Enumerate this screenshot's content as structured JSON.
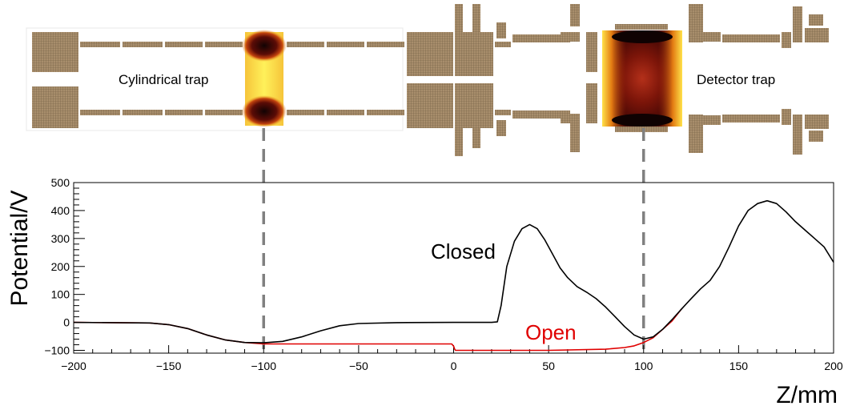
{
  "diagram": {
    "cylindrical_trap_label": "Cylindrical trap",
    "detector_trap_label": "Detector trap"
  },
  "chart_data": {
    "type": "line",
    "xlabel": "Z/mm",
    "ylabel": "Potential/V",
    "xlim": [
      -200,
      200
    ],
    "ylim": [
      -110,
      500
    ],
    "xticks": [
      -200,
      -150,
      -100,
      -50,
      0,
      50,
      100,
      150,
      200
    ],
    "yticks": [
      -100,
      0,
      100,
      200,
      300,
      400,
      500
    ],
    "xtick_labels": [
      "−200",
      "−150",
      "−100",
      "−50",
      "0",
      "50",
      "100",
      "150",
      "200"
    ],
    "ytick_labels": [
      "−100",
      "0",
      "100",
      "200",
      "300",
      "400",
      "500"
    ],
    "vlines": [
      -100,
      100
    ],
    "grid": false,
    "series": [
      {
        "name": "Closed",
        "color": "#000000",
        "x": [
          -200,
          -160,
          -150,
          -140,
          -130,
          -120,
          -110,
          -100,
          -90,
          -80,
          -70,
          -60,
          -50,
          -30,
          0,
          20,
          23,
          25,
          28,
          32,
          36,
          40,
          44,
          48,
          52,
          56,
          60,
          65,
          70,
          75,
          80,
          85,
          90,
          95,
          100,
          105,
          110,
          115,
          120,
          125,
          130,
          135,
          140,
          145,
          150,
          155,
          160,
          165,
          170,
          175,
          180,
          185,
          190,
          195,
          200
        ],
        "y": [
          0,
          -2,
          -8,
          -22,
          -45,
          -63,
          -72,
          -73,
          -68,
          -52,
          -30,
          -12,
          -4,
          -1,
          0,
          0,
          2,
          60,
          200,
          290,
          335,
          350,
          335,
          295,
          245,
          195,
          160,
          128,
          108,
          85,
          55,
          20,
          -15,
          -45,
          -60,
          -52,
          -25,
          10,
          48,
          85,
          120,
          150,
          200,
          270,
          345,
          400,
          425,
          435,
          425,
          395,
          360,
          330,
          300,
          270,
          215
        ]
      },
      {
        "name": "Open",
        "color": "#e00000",
        "x": [
          -200,
          -160,
          -150,
          -140,
          -130,
          -120,
          -110,
          -100,
          -90,
          -80,
          -70,
          -60,
          -50,
          -30,
          -1,
          0,
          0.5,
          1,
          1.5,
          20,
          50,
          80,
          90,
          95,
          100,
          105,
          110,
          115,
          120
        ],
        "y": [
          0,
          -2,
          -8,
          -22,
          -45,
          -63,
          -72,
          -77,
          -77,
          -77,
          -77,
          -77,
          -77,
          -77,
          -77,
          -85,
          -95,
          -100,
          -100,
          -100,
          -100,
          -96,
          -90,
          -84,
          -72,
          -55,
          -25,
          5,
          48
        ]
      }
    ]
  },
  "annotations": {
    "closed_label": "Closed",
    "open_label": "Open"
  }
}
